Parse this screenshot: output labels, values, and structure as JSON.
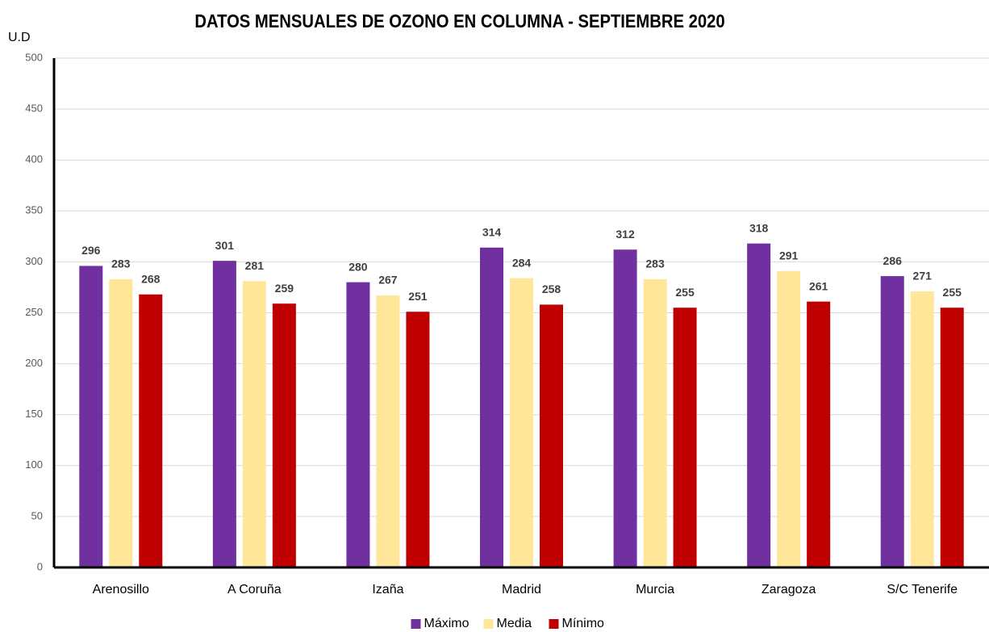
{
  "chart_data": {
    "type": "bar",
    "title": "DATOS MENSUALES DE OZONO EN COLUMNA - SEPTIEMBRE 2020",
    "y_label": "U.D",
    "categories": [
      "Arenosillo",
      "A Coruña",
      "Izaña",
      "Madrid",
      "Murcia",
      "Zaragoza",
      "S/C Tenerife"
    ],
    "series": [
      {
        "name": "Máximo",
        "color": "#7030a0",
        "values": [
          296,
          301,
          280,
          314,
          312,
          318,
          286
        ]
      },
      {
        "name": "Media",
        "color": "#ffe699",
        "values": [
          283,
          281,
          267,
          284,
          283,
          291,
          271
        ]
      },
      {
        "name": "Mínimo",
        "color": "#c00000",
        "values": [
          268,
          259,
          251,
          258,
          255,
          261,
          255
        ]
      }
    ],
    "ylim": [
      0,
      500
    ],
    "yticks": [
      0,
      50,
      100,
      150,
      200,
      250,
      300,
      350,
      400,
      450,
      500
    ],
    "grid": true,
    "legend": "bottom",
    "data_labels": true
  }
}
